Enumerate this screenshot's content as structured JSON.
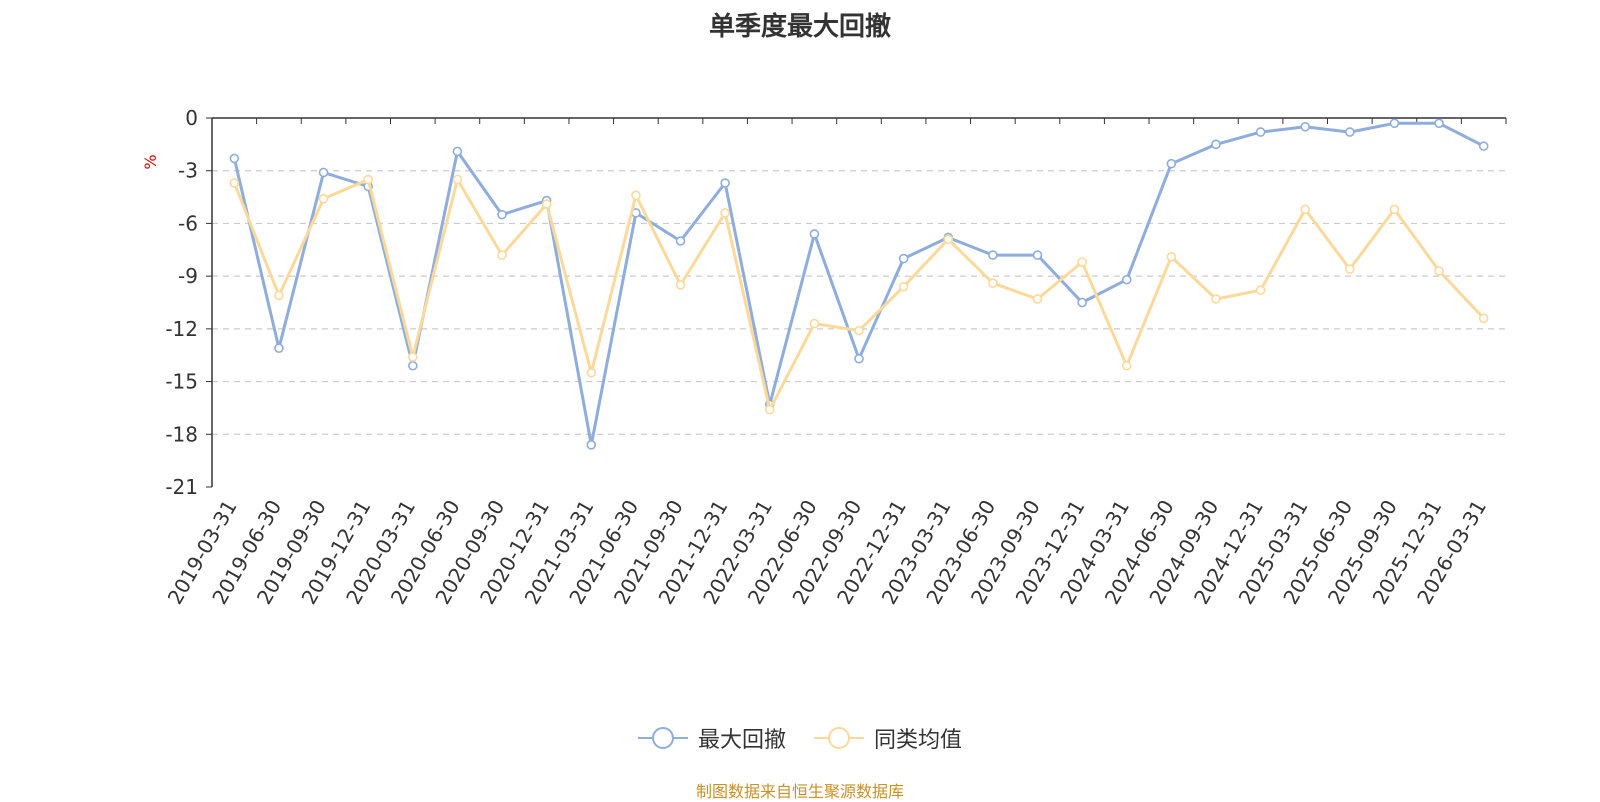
{
  "chart_data": {
    "type": "line",
    "title": "单季度最大回撤",
    "ylabel": "%",
    "ylim": [
      -21,
      0
    ],
    "yticks": [
      0,
      -3,
      -6,
      -9,
      -12,
      -15,
      -18,
      -21
    ],
    "grid": true,
    "legend_position": "bottom",
    "categories": [
      "2019-03-31",
      "2019-06-30",
      "2019-09-30",
      "2019-12-31",
      "2020-03-31",
      "2020-06-30",
      "2020-09-30",
      "2020-12-31",
      "2021-03-31",
      "2021-06-30",
      "2021-09-30",
      "2021-12-31",
      "2022-03-31",
      "2022-06-30",
      "2022-09-30",
      "2022-12-31",
      "2023-03-31",
      "2023-06-30",
      "2023-09-30",
      "2023-12-31",
      "2024-03-31",
      "2024-06-30",
      "2024-09-30",
      "2024-12-31",
      "2025-03-31",
      "2025-06-30",
      "2025-09-30",
      "2025-12-31",
      "2026-03-31"
    ],
    "series": [
      {
        "name": "最大回撤",
        "color": "#8eaddc",
        "values": [
          -2.3,
          -13.1,
          -3.1,
          -3.9,
          -14.1,
          -1.9,
          -5.5,
          -4.7,
          -18.6,
          -5.4,
          -7.0,
          -3.7,
          -16.3,
          -6.6,
          -13.7,
          -8.0,
          -6.8,
          -7.8,
          -7.8,
          -10.5,
          -9.2,
          -2.6,
          -1.5,
          -0.8,
          -0.5,
          -0.8,
          -0.3,
          -0.3,
          -1.6
        ]
      },
      {
        "name": "同类均值",
        "color": "#fbd99b",
        "values": [
          -3.7,
          -10.1,
          -4.6,
          -3.5,
          -13.6,
          -3.5,
          -7.8,
          -4.9,
          -14.5,
          -4.4,
          -9.5,
          -5.4,
          -16.6,
          -11.7,
          -12.1,
          -9.6,
          -6.9,
          -9.4,
          -10.3,
          -8.2,
          -14.1,
          -7.9,
          -10.3,
          -9.8,
          -5.2,
          -8.6,
          -5.2,
          -8.7,
          -11.4
        ]
      }
    ]
  },
  "source_text": "制图数据来自恒生聚源数据库"
}
